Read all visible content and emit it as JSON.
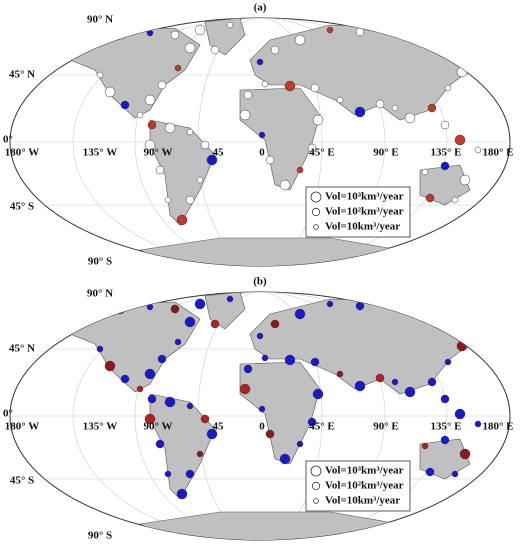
{
  "panels": [
    {
      "label": "(a)",
      "graticule_labels": [
        "90° N",
        "45° N",
        "0°",
        "180° W",
        "135° W",
        "90° W",
        "45",
        "0",
        "45° E",
        "90° E",
        "135° E",
        "180° E",
        "45° S",
        "90° S"
      ],
      "legend": [
        "Vol=10³km³/year",
        "Vol=10²km³/year",
        "Vol=10km³/year"
      ]
    },
    {
      "label": "(b)",
      "graticule_labels": [
        "90° N",
        "45° N",
        "0°",
        "180° W",
        "135° W",
        "90° W",
        "45",
        "0",
        "45° E",
        "90° E",
        "135° E",
        "180° E",
        "45° S",
        "90° S"
      ],
      "legend": [
        "Vol=10³km³/year",
        "Vol=10²km³/year",
        "Vol=10km³/year"
      ]
    }
  ]
}
